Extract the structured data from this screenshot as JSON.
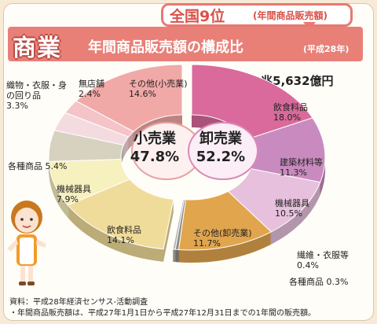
{
  "header": {
    "rank": "全国9位",
    "rank_note": "(年間商品販売額)",
    "title_main": "商業",
    "title_sub": "年間商品販売額の構成比",
    "title_note": "(平成28年)"
  },
  "total": "総額 12兆5,632億円",
  "footnote": {
    "line1": "資料：平成28年経済センサス-活動調査",
    "line2": "・年間商品販売額は、平成27年1月1日から平成27年12月31日までの1年間の販売額。"
  },
  "colors": {
    "title_band": "#e88078",
    "wholesale": "#d96a9b",
    "retail": "#f1a9a7"
  },
  "chart_data": {
    "type": "pie",
    "title": "年間商品販売額の構成比",
    "groups": [
      {
        "name": "卸売業",
        "label": "卸売業",
        "value": "52.2%",
        "items": [
          {
            "name": "飲食料品",
            "value": 18.0,
            "label": "18.0%",
            "color": "#d96a9b"
          },
          {
            "name": "建築材料等",
            "value": 11.3,
            "label": "11.3%",
            "color": "#c98bbf"
          },
          {
            "name": "機械器具",
            "value": 10.5,
            "label": "10.5%",
            "color": "#e6c0dc"
          },
          {
            "name": "その他(卸売業)",
            "value": 11.7,
            "label": "11.7%",
            "color": "#e1a54e"
          },
          {
            "name": "繊維・衣服等",
            "value": 0.4,
            "label": "0.4%",
            "color": "#8c8a86"
          },
          {
            "name": "各種商品",
            "value": 0.3,
            "label": "0.3%",
            "color": "#b7b4ae"
          }
        ]
      },
      {
        "name": "小売業",
        "label": "小売業",
        "value": "47.8%",
        "items": [
          {
            "name": "飲食料品",
            "value": 14.1,
            "label": "14.1%",
            "color": "#f0dc9a"
          },
          {
            "name": "機械器具",
            "value": 7.9,
            "label": "7.9%",
            "color": "#f7f0bf"
          },
          {
            "name": "各種商品",
            "value": 5.4,
            "label": "5.4%",
            "color": "#d7d2c0"
          },
          {
            "name": "織物・衣服・身の回り品",
            "value": 3.3,
            "label": "3.3%",
            "color": "#f4dbe0"
          },
          {
            "name": "無店舗",
            "value": 2.4,
            "label": "2.4%",
            "color": "#f4c4c8"
          },
          {
            "name": "その他(小売業)",
            "value": 14.6,
            "label": "14.6%",
            "color": "#f1a9a7"
          }
        ]
      }
    ]
  }
}
